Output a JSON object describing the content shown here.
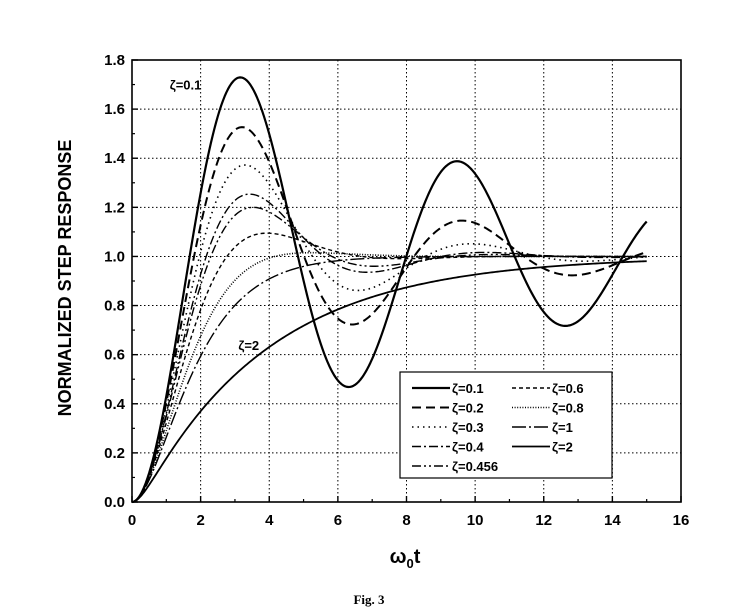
{
  "chart_data": {
    "type": "line",
    "caption": "Fig. 3",
    "ylabel": "NORMALIZED STEP RESPONSE",
    "xlabel_main": "ω",
    "xlabel_sub": "0",
    "xlabel_tail": "t",
    "xlim": [
      0,
      16
    ],
    "ylim": [
      0,
      1.8
    ],
    "xticks": [
      "0",
      "2",
      "4",
      "6",
      "8",
      "10",
      "12",
      "14",
      "16"
    ],
    "yticks": [
      "0.0",
      "0.2",
      "0.4",
      "0.6",
      "0.8",
      "1.0",
      "1.2",
      "1.4",
      "1.6",
      "1.8"
    ],
    "grid": true,
    "legend_position": "bottom-right",
    "x_max": 15,
    "annotations": [
      {
        "text": "ζ=0.1",
        "x": 1.1,
        "y": 1.68
      },
      {
        "text": "ζ=2",
        "x": 3.1,
        "y": 0.62
      }
    ],
    "series": [
      {
        "name": "ζ=0.1",
        "zeta": 0.1,
        "style": "solid-thick"
      },
      {
        "name": "ζ=0.2",
        "zeta": 0.2,
        "style": "dashed-long"
      },
      {
        "name": "ζ=0.3",
        "zeta": 0.3,
        "style": "dotted"
      },
      {
        "name": "ζ=0.4",
        "zeta": 0.4,
        "style": "dashdot"
      },
      {
        "name": "ζ=0.456",
        "zeta": 0.456,
        "style": "dashdotdot"
      },
      {
        "name": "ζ=0.6",
        "zeta": 0.6,
        "style": "dashed-short"
      },
      {
        "name": "ζ=0.8",
        "zeta": 0.8,
        "style": "dotted-dense"
      },
      {
        "name": "ζ=1",
        "zeta": 1.0,
        "style": "dashdot-long"
      },
      {
        "name": "ζ=2",
        "zeta": 2.0,
        "style": "solid"
      }
    ]
  }
}
